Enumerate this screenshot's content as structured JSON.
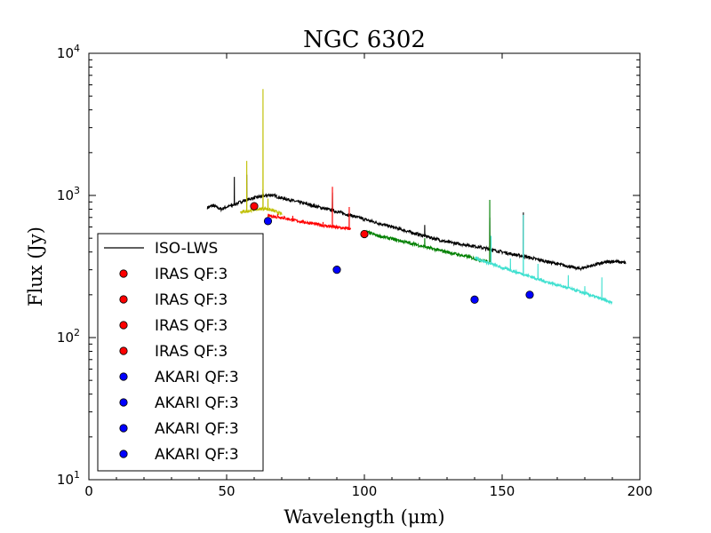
{
  "chart_data": {
    "type": "line",
    "title": "NGC 6302",
    "xlabel": "Wavelength (μm)",
    "ylabel": "Flux (Jy)",
    "xlim": [
      0,
      200
    ],
    "ylim": [
      10,
      10000
    ],
    "yscale": "log",
    "x_ticks": [
      {
        "value": 0,
        "label": "0"
      },
      {
        "value": 50,
        "label": "50"
      },
      {
        "value": 100,
        "label": "100"
      },
      {
        "value": 150,
        "label": "150"
      },
      {
        "value": 200,
        "label": "200"
      }
    ],
    "y_ticks": [
      {
        "value": 10,
        "base": "10",
        "exp": "1"
      },
      {
        "value": 100,
        "base": "10",
        "exp": "2"
      },
      {
        "value": 1000,
        "base": "10",
        "exp": "3"
      },
      {
        "value": 10000,
        "base": "10",
        "exp": "4"
      }
    ],
    "legend_position": "lower-left",
    "series": [
      {
        "name": "ISO-LWS",
        "color": "#000000",
        "in_legend": true,
        "base_points": [
          [
            43,
            820
          ],
          [
            45,
            850
          ],
          [
            48,
            800
          ],
          [
            50,
            830
          ],
          [
            52,
            850
          ],
          [
            55,
            900
          ],
          [
            58,
            940
          ],
          [
            62,
            980
          ],
          [
            66,
            1010
          ],
          [
            70,
            960
          ],
          [
            80,
            860
          ],
          [
            90,
            770
          ],
          [
            100,
            680
          ],
          [
            110,
            600
          ],
          [
            120,
            530
          ],
          [
            125,
            500
          ],
          [
            130,
            470
          ],
          [
            140,
            440
          ],
          [
            150,
            400
          ],
          [
            160,
            365
          ],
          [
            170,
            330
          ],
          [
            178,
            305
          ],
          [
            185,
            330
          ],
          [
            190,
            345
          ],
          [
            195,
            335
          ]
        ],
        "lines": [
          [
            52.8,
            1350
          ],
          [
            57.3,
            1400
          ],
          [
            63.2,
            1100
          ],
          [
            88.4,
            1050
          ],
          [
            121.9,
            620
          ],
          [
            145.5,
            700
          ],
          [
            157.7,
            760
          ]
        ]
      },
      {
        "name": "spectrum segment",
        "color": "#bfbf00",
        "in_legend": false,
        "base_points": [
          [
            55,
            760
          ],
          [
            58,
            780
          ],
          [
            61,
            800
          ],
          [
            64,
            810
          ],
          [
            67,
            780
          ],
          [
            70,
            740
          ]
        ],
        "lines": [
          [
            57.3,
            1750
          ],
          [
            63.2,
            5600
          ],
          [
            65,
            950
          ]
        ]
      },
      {
        "name": "spectrum segment",
        "color": "#ff0000",
        "in_legend": false,
        "base_points": [
          [
            65,
            720
          ],
          [
            70,
            700
          ],
          [
            75,
            665
          ],
          [
            80,
            640
          ],
          [
            85,
            615
          ],
          [
            90,
            595
          ],
          [
            95,
            580
          ]
        ],
        "lines": [
          [
            68.5,
            740
          ],
          [
            74,
            720
          ],
          [
            85,
            650
          ],
          [
            88.4,
            1150
          ],
          [
            94.5,
            830
          ]
        ]
      },
      {
        "name": "spectrum segment",
        "color": "#008000",
        "in_legend": false,
        "base_points": [
          [
            100,
            560
          ],
          [
            105,
            520
          ],
          [
            110,
            495
          ],
          [
            115,
            470
          ],
          [
            120,
            445
          ],
          [
            125,
            420
          ],
          [
            130,
            400
          ],
          [
            135,
            380
          ],
          [
            140,
            360
          ],
          [
            145,
            340
          ]
        ],
        "lines": [
          [
            118,
            470
          ],
          [
            121.9,
            500
          ],
          [
            138,
            385
          ],
          [
            145.5,
            930
          ]
        ]
      },
      {
        "name": "spectrum segment",
        "color": "#40e0d0",
        "in_legend": false,
        "base_points": [
          [
            140,
            365
          ],
          [
            145,
            335
          ],
          [
            150,
            310
          ],
          [
            155,
            290
          ],
          [
            160,
            270
          ],
          [
            165,
            250
          ],
          [
            170,
            235
          ],
          [
            175,
            220
          ],
          [
            180,
            205
          ],
          [
            185,
            190
          ],
          [
            190,
            175
          ]
        ],
        "lines": [
          [
            146,
            520
          ],
          [
            153,
            360
          ],
          [
            157.7,
            730
          ],
          [
            163,
            330
          ],
          [
            174,
            275
          ],
          [
            180,
            230
          ],
          [
            186.2,
            265
          ]
        ]
      }
    ],
    "points": [
      {
        "label": "IRAS QF:3",
        "color": "#ff0000",
        "x": 60,
        "y": 840
      },
      {
        "label": "IRAS QF:3",
        "color": "#ff0000",
        "x": 100,
        "y": 535
      },
      {
        "label": "AKARI QF:3",
        "color": "#0000ff",
        "x": 65,
        "y": 660
      },
      {
        "label": "AKARI QF:3",
        "color": "#0000ff",
        "x": 90,
        "y": 300
      },
      {
        "label": "AKARI QF:3",
        "color": "#0000ff",
        "x": 140,
        "y": 185
      },
      {
        "label": "AKARI QF:3",
        "color": "#0000ff",
        "x": 160,
        "y": 200
      }
    ],
    "legend": [
      {
        "label": "ISO-LWS",
        "kind": "line",
        "color": "#000000"
      },
      {
        "label": "IRAS QF:3",
        "kind": "marker",
        "color": "#ff0000"
      },
      {
        "label": "IRAS QF:3",
        "kind": "marker",
        "color": "#ff0000"
      },
      {
        "label": "IRAS QF:3",
        "kind": "marker",
        "color": "#ff0000"
      },
      {
        "label": "IRAS QF:3",
        "kind": "marker",
        "color": "#ff0000"
      },
      {
        "label": "AKARI QF:3",
        "kind": "marker",
        "color": "#0000ff"
      },
      {
        "label": "AKARI QF:3",
        "kind": "marker",
        "color": "#0000ff"
      },
      {
        "label": "AKARI QF:3",
        "kind": "marker",
        "color": "#0000ff"
      },
      {
        "label": "AKARI QF:3",
        "kind": "marker",
        "color": "#0000ff"
      }
    ]
  }
}
